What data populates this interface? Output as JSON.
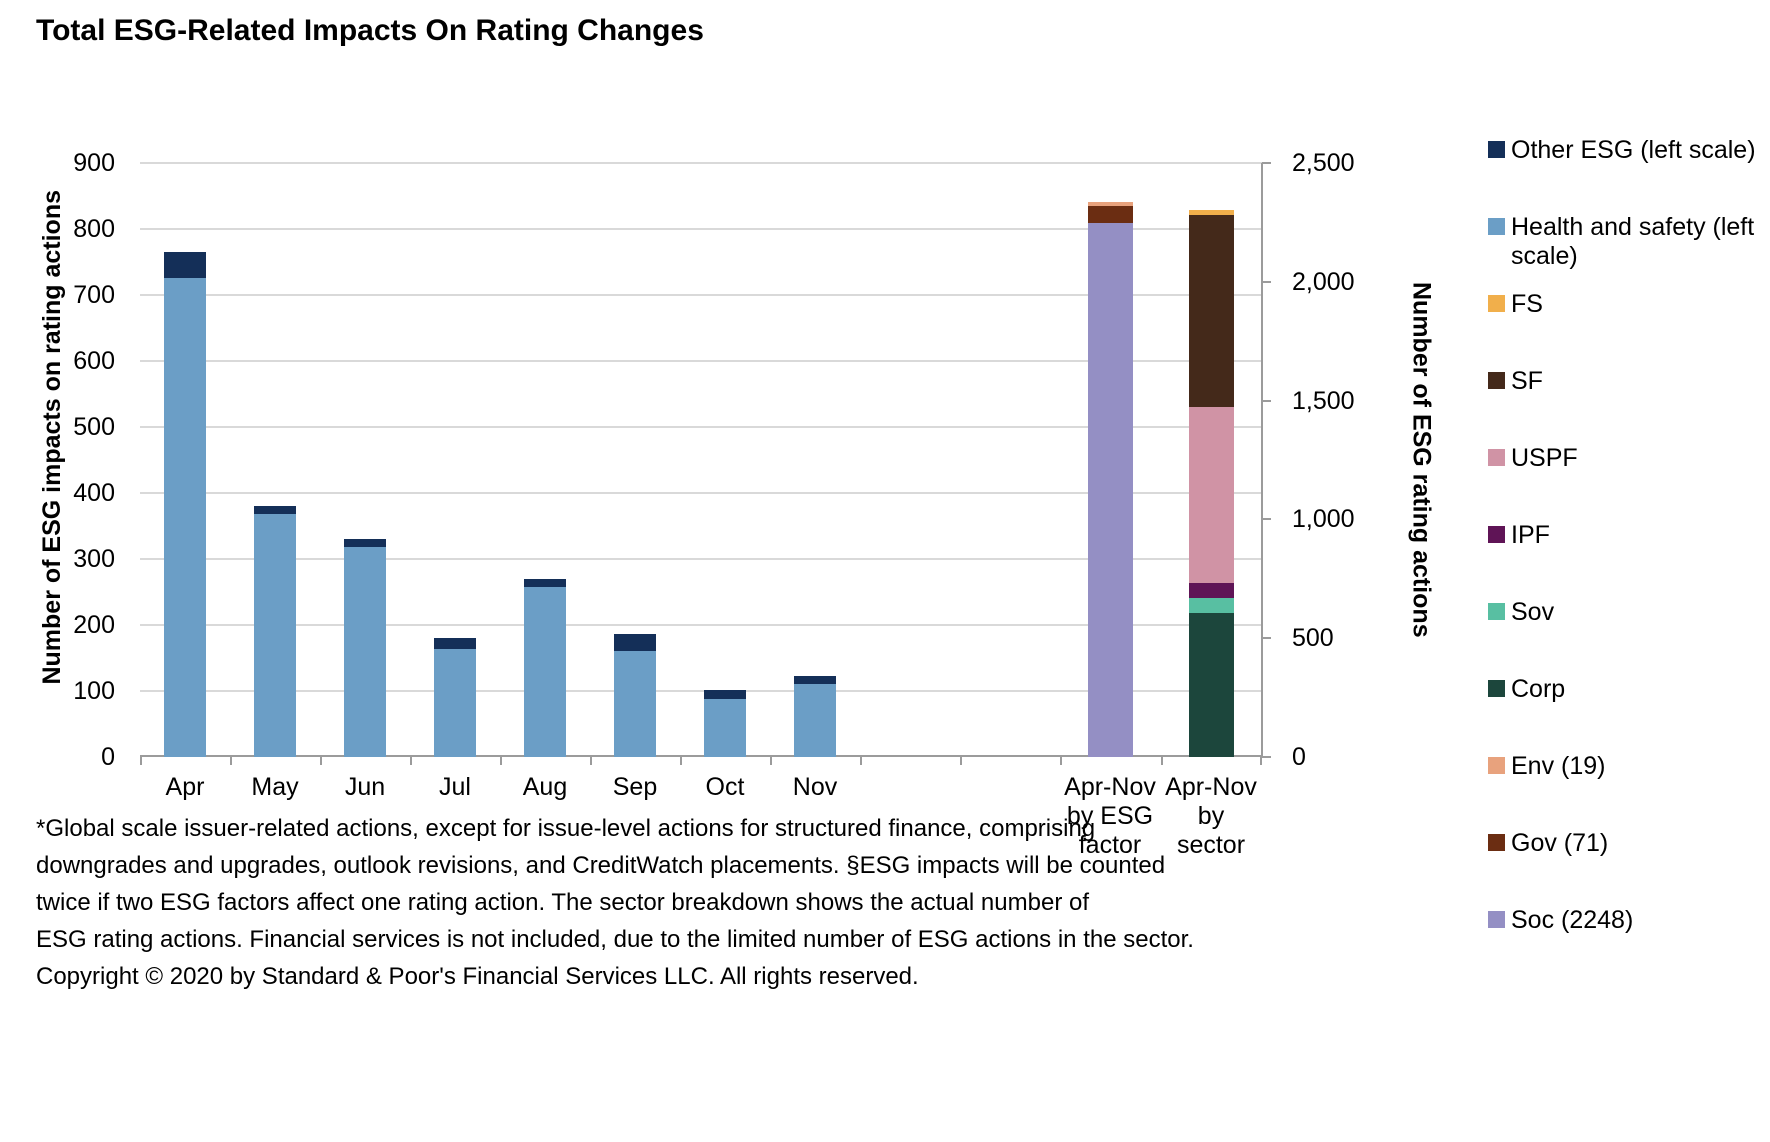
{
  "title": "Total ESG-Related Impacts On Rating Changes",
  "chart_data": {
    "type": "bar",
    "stacked": true,
    "title": "Total ESG-Related Impacts On Rating Changes",
    "grid": true,
    "legend_position": "right",
    "background_color": "#FFFFFF",
    "gridline_color": "#D9D9D9",
    "axis_color": "#9B9B9B",
    "left_axis": {
      "title": "Number of ESG impacts on rating actions",
      "min": 0,
      "max": 900,
      "step": 100,
      "tick_labels": [
        "0",
        "100",
        "200",
        "300",
        "400",
        "500",
        "600",
        "700",
        "800",
        "900"
      ]
    },
    "right_axis": {
      "title": "Number  of ESG rating actions",
      "min": 0,
      "max": 2500,
      "step": 500,
      "tick_labels": [
        "0",
        "500",
        "1,000",
        "1,500",
        "2,000",
        "2,500"
      ]
    },
    "monthly": {
      "scale": "left",
      "categories": [
        "Apr",
        "May",
        "Jun",
        "Jul",
        "Aug",
        "Sep",
        "Oct",
        "Nov"
      ],
      "series": [
        {
          "name": "Health and safety (left scale)",
          "color": "#6B9EC6",
          "values": [
            725,
            368,
            318,
            163,
            258,
            160,
            88,
            111
          ]
        },
        {
          "name": "Other ESG (left scale)",
          "color": "#142F58",
          "values": [
            40,
            12,
            13,
            17,
            12,
            27,
            14,
            12
          ]
        }
      ]
    },
    "total_bars": [
      {
        "category_label": "Apr-Nov\nby ESG\nfactor",
        "scale": "right",
        "segments": [
          {
            "name": "Soc",
            "color": "#948FC4",
            "value": 2248
          },
          {
            "name": "Gov",
            "color": "#6B2D12",
            "value": 71
          },
          {
            "name": "Env",
            "color": "#E8A27D",
            "value": 19
          }
        ]
      },
      {
        "category_label": "Apr-Nov\nby\nsector",
        "scale": "right",
        "segments": [
          {
            "name": "Corp",
            "color": "#1C463C",
            "value": 606
          },
          {
            "name": "Sov",
            "color": "#58BFA2",
            "value": 63
          },
          {
            "name": "IPF",
            "color": "#5F1456",
            "value": 63
          },
          {
            "name": "USPF",
            "color": "#D093A5",
            "value": 740
          },
          {
            "name": "SF",
            "color": "#44291A",
            "value": 810
          },
          {
            "name": "FS",
            "color": "#F1AF4B",
            "value": 20
          }
        ]
      }
    ],
    "legend": [
      {
        "label": "Other ESG (left scale)",
        "color": "#142F58"
      },
      {
        "label": "Health and safety (left scale)",
        "color": "#6B9EC6"
      },
      {
        "label": "FS",
        "color": "#F1AF4B"
      },
      {
        "label": "SF",
        "color": "#44291A"
      },
      {
        "label": "USPF",
        "color": "#D093A5"
      },
      {
        "label": "IPF",
        "color": "#5F1456"
      },
      {
        "label": "Sov",
        "color": "#58BFA2"
      },
      {
        "label": "Corp",
        "color": "#1C463C"
      },
      {
        "label": "Env (19)",
        "color": "#E8A27D"
      },
      {
        "label": "Gov (71)",
        "color": "#6B2D12"
      },
      {
        "label": "Soc (2248)",
        "color": "#948FC4"
      }
    ]
  },
  "footnote_lines": [
    "*Global scale issuer-related actions, except for issue-level actions for structured finance, comprising",
    "downgrades and upgrades, outlook revisions, and CreditWatch placements. §ESG impacts will be counted",
    "twice if two ESG factors affect one rating action. The sector breakdown shows the actual number of",
    "ESG rating actions. Financial services is not included, due to the limited number of ESG actions in the sector.",
    "Copyright © 2020 by Standard & Poor's Financial Services LLC. All rights reserved."
  ]
}
